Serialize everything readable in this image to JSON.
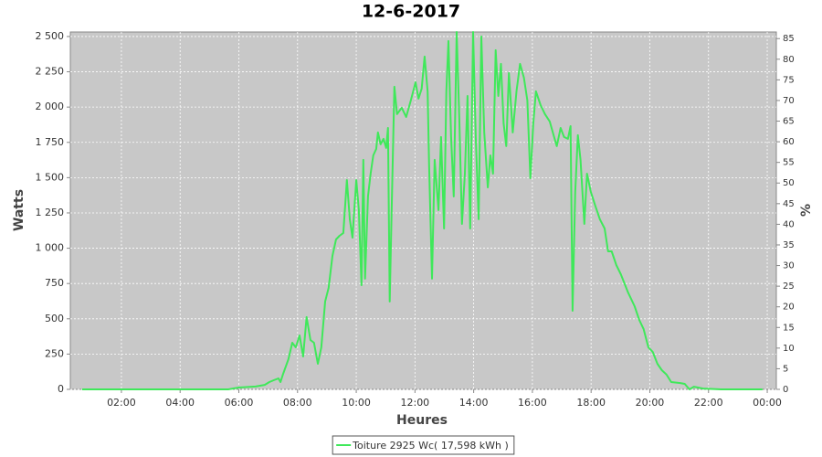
{
  "chart_data": {
    "type": "line",
    "title": "12-6-2017",
    "x_label": "Heures",
    "y_label": "Watts",
    "y2_label": "%",
    "x": [
      0.66,
      5.64,
      6.0,
      6.57,
      6.88,
      7.04,
      7.19,
      7.35,
      7.42,
      7.5,
      7.69,
      7.82,
      7.94,
      8.07,
      8.19,
      8.31,
      8.44,
      8.56,
      8.69,
      8.81,
      8.94,
      9.06,
      9.19,
      9.31,
      9.43,
      9.56,
      9.68,
      9.78,
      9.87,
      10.0,
      10.09,
      10.18,
      10.24,
      10.3,
      10.4,
      10.49,
      10.58,
      10.68,
      10.74,
      10.83,
      10.93,
      11.02,
      11.08,
      11.14,
      11.2,
      11.3,
      11.39,
      11.55,
      11.7,
      11.86,
      12.02,
      12.12,
      12.23,
      12.33,
      12.43,
      12.48,
      12.58,
      12.67,
      12.8,
      12.89,
      12.99,
      13.07,
      13.14,
      13.23,
      13.32,
      13.42,
      13.51,
      13.6,
      13.7,
      13.79,
      13.88,
      13.98,
      14.07,
      14.17,
      14.26,
      14.36,
      14.48,
      14.57,
      14.66,
      14.75,
      14.84,
      14.93,
      15.02,
      15.11,
      15.2,
      15.33,
      15.46,
      15.58,
      15.71,
      15.83,
      15.93,
      16.03,
      16.12,
      16.28,
      16.43,
      16.59,
      16.74,
      16.83,
      16.96,
      17.08,
      17.21,
      17.3,
      17.37,
      17.46,
      17.55,
      17.64,
      17.77,
      17.86,
      17.99,
      18.14,
      18.3,
      18.46,
      18.58,
      18.7,
      18.86,
      19.01,
      19.26,
      19.48,
      19.64,
      19.79,
      19.95,
      20.1,
      20.26,
      20.41,
      20.57,
      20.73,
      21.04,
      21.19,
      21.35,
      21.5,
      21.81,
      22.43,
      23.84
    ],
    "series": [
      {
        "name": "Toiture 2925 Wc( 17,598 kWh )",
        "color": "#3fe85a",
        "values": [
          0,
          0,
          13,
          20,
          32,
          52,
          65,
          78,
          52,
          104,
          214,
          330,
          298,
          382,
          233,
          512,
          350,
          330,
          181,
          298,
          622,
          719,
          946,
          1062,
          1088,
          1108,
          1483,
          1205,
          1075,
          1483,
          1270,
          738,
          1626,
          784,
          1367,
          1528,
          1658,
          1703,
          1820,
          1736,
          1775,
          1710,
          1852,
          622,
          1205,
          2144,
          1950,
          1995,
          1930,
          2047,
          2176,
          2060,
          2131,
          2358,
          2112,
          1593,
          784,
          1626,
          1270,
          1788,
          1140,
          2112,
          2468,
          1788,
          1367,
          2532,
          1917,
          1172,
          1528,
          2079,
          1140,
          2532,
          1788,
          1205,
          2500,
          1820,
          1431,
          1658,
          1528,
          2403,
          2079,
          2306,
          1885,
          1723,
          2241,
          1820,
          2112,
          2306,
          2209,
          2047,
          1496,
          1885,
          2112,
          2014,
          1950,
          1898,
          1788,
          1723,
          1852,
          1788,
          1775,
          1865,
          557,
          1399,
          1801,
          1626,
          1172,
          1528,
          1399,
          1302,
          1205,
          1140,
          978,
          978,
          881,
          816,
          686,
          589,
          492,
          427,
          298,
          265,
          181,
          136,
          104,
          52,
          45,
          39,
          0,
          19,
          6,
          0,
          0
        ]
      }
    ],
    "xlim": [
      0.26,
      24.31
    ],
    "xticks": [
      {
        "value": 2,
        "label": "02:00"
      },
      {
        "value": 4,
        "label": "04:00"
      },
      {
        "value": 6,
        "label": "06:00"
      },
      {
        "value": 8,
        "label": "08:00"
      },
      {
        "value": 10,
        "label": "10:00"
      },
      {
        "value": 12,
        "label": "12:00"
      },
      {
        "value": 14,
        "label": "14:00"
      },
      {
        "value": 16,
        "label": "16:00"
      },
      {
        "value": 18,
        "label": "18:00"
      },
      {
        "value": 20,
        "label": "20:00"
      },
      {
        "value": 22,
        "label": "22:00"
      },
      {
        "value": 24,
        "label": "00:00"
      }
    ],
    "ylim": [
      0,
      2532
    ],
    "yticks": [
      0,
      250,
      500,
      750,
      {
        "value": 1000,
        "label": "1 000"
      },
      {
        "value": 1250,
        "label": "1 250"
      },
      {
        "value": 1500,
        "label": "1 500"
      },
      {
        "value": 1750,
        "label": "1 750"
      },
      {
        "value": 2000,
        "label": "2 000"
      },
      {
        "value": 2250,
        "label": "2 250"
      },
      {
        "value": 2500,
        "label": "2 500"
      }
    ],
    "y2lim": [
      0,
      86.6
    ],
    "y2ticks": [
      0,
      5,
      10,
      15,
      20,
      25,
      30,
      35,
      40,
      45,
      50,
      55,
      60,
      65,
      70,
      75,
      80,
      85
    ],
    "grid": true,
    "background": "#c8c8c8"
  }
}
